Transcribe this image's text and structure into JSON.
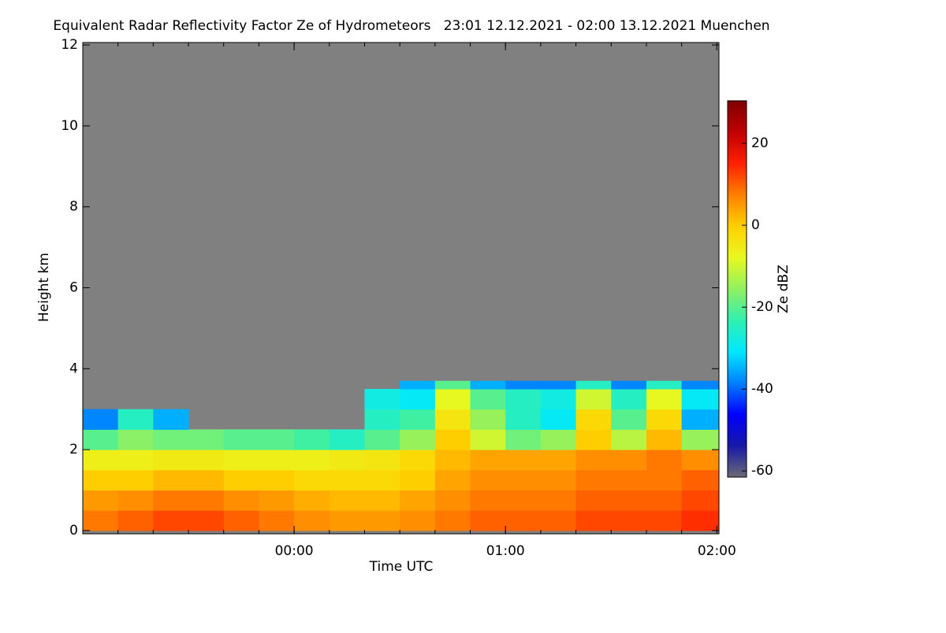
{
  "chart_data": {
    "type": "heatmap",
    "title": "Equivalent Radar Reflectivity Factor Ze of Hydrometeors   23:01 12.12.2021 - 02:00 13.12.2021 Muenchen",
    "x_label": "Time UTC",
    "y_label": "Height km",
    "colorbar_label": "Ze dBZ",
    "x_edges": [
      -1,
      -0.8333,
      -0.6667,
      -0.5,
      -0.3333,
      -0.1667,
      0,
      0.1667,
      0.3333,
      0.5,
      0.6667,
      0.8333,
      1,
      1.1667,
      1.3333,
      1.5,
      1.6667,
      1.8333,
      2.01
    ],
    "y_edges": [
      0,
      0.5,
      1,
      1.5,
      2,
      2.5,
      3,
      3.5,
      3.7
    ],
    "values": [
      [
        8,
        10,
        12,
        12,
        10,
        8,
        6,
        5,
        5,
        6,
        8,
        10,
        10,
        10,
        12,
        12,
        12,
        14
      ],
      [
        5,
        6,
        8,
        8,
        6,
        5,
        3,
        2,
        2,
        4,
        6,
        8,
        8,
        8,
        10,
        10,
        10,
        12
      ],
      [
        0,
        0,
        2,
        2,
        0,
        0,
        -2,
        -2,
        -2,
        0,
        4,
        6,
        6,
        6,
        8,
        8,
        8,
        10
      ],
      [
        -6,
        -6,
        -5,
        -5,
        -6,
        -6,
        -6,
        -5,
        -4,
        -2,
        2,
        4,
        4,
        4,
        6,
        6,
        8,
        6
      ],
      [
        -20,
        -16,
        -18,
        -18,
        -20,
        -20,
        -22,
        -25,
        -20,
        -15,
        0,
        -10,
        -18,
        -15,
        0,
        -12,
        2,
        -15
      ],
      [
        -38,
        -25,
        -35,
        null,
        null,
        null,
        null,
        null,
        -25,
        -22,
        -4,
        -15,
        -25,
        -30,
        -2,
        -20,
        -2,
        -35
      ],
      [
        null,
        null,
        null,
        null,
        null,
        null,
        null,
        null,
        -28,
        -30,
        -8,
        -20,
        -25,
        -28,
        -10,
        -25,
        -8,
        -30
      ],
      [
        null,
        null,
        null,
        null,
        null,
        null,
        null,
        null,
        null,
        -35,
        -20,
        -35,
        -38,
        -38,
        -25,
        -38,
        -25,
        -38
      ]
    ],
    "xlim": [
      -1,
      2.01
    ],
    "xticks": [
      {
        "value": 0,
        "label": "00:00"
      },
      {
        "value": 1,
        "label": "01:00"
      },
      {
        "value": 2,
        "label": "02:00"
      }
    ],
    "ylim": [
      -0.08,
      12.06
    ],
    "yticks": [
      0,
      2,
      4,
      6,
      8,
      10,
      12
    ],
    "clim": [
      -61.5,
      30.4
    ],
    "cticks": [
      -60,
      -40,
      -20,
      0,
      20
    ],
    "background": "#808080",
    "colormap": [
      "#6a6a78",
      "#1818a8",
      "#0000ff",
      "#0080ff",
      "#00e8ff",
      "#30f0b0",
      "#90f060",
      "#e8f820",
      "#ffd000",
      "#ff8000",
      "#ff2000",
      "#c00000",
      "#800000"
    ]
  }
}
